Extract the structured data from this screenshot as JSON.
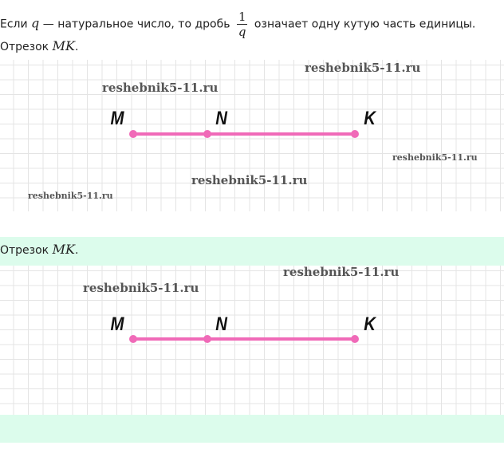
{
  "definition": {
    "before": "Если ",
    "var": "q",
    "middle": " — натуральное число, то дробь ",
    "frac_num": "1",
    "frac_den": "q",
    "after": " означает одну кутую часть единицы."
  },
  "segment_caption": {
    "label": "Отрезок ",
    "math": "MK",
    "dot": "."
  },
  "figure1": {
    "points": [
      "M",
      "N",
      "K"
    ],
    "watermarks": [
      "reshebnik5-11.ru",
      "reshebnik5-11.ru",
      "reshebnik5-11.ru",
      "reshebnik5-11.ru",
      "reshebnik5-11.ru"
    ]
  },
  "answer": {
    "caption_label": "Отрезок ",
    "caption_math": "MK",
    "caption_dot": ".",
    "points": [
      "M",
      "N",
      "K"
    ],
    "watermarks": [
      "reshebnik5-11.ru",
      "reshebnik5-11.ru"
    ]
  },
  "colors": {
    "segment": "#f06ab8",
    "answer_bg": "#dcfcec"
  }
}
